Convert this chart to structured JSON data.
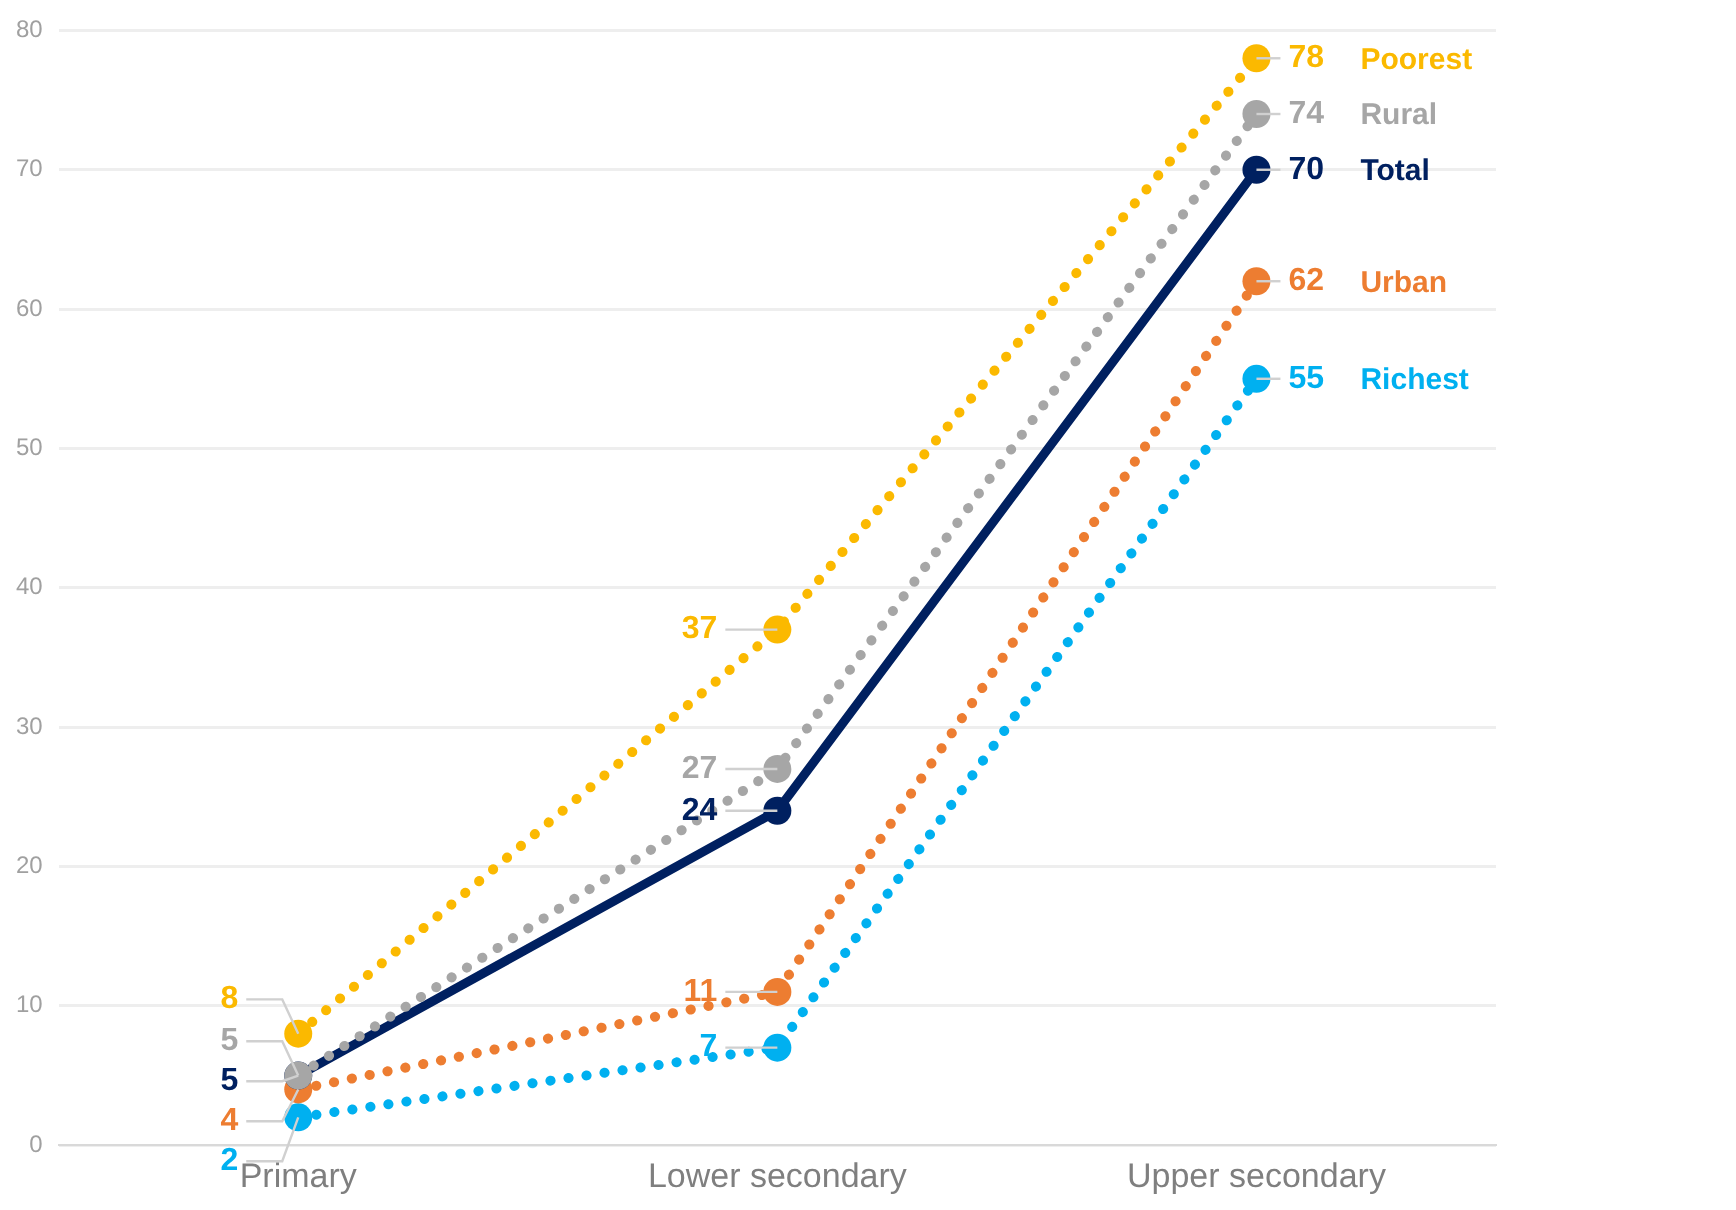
{
  "chart_data": {
    "type": "line",
    "categories": [
      "Primary",
      "Lower secondary",
      "Upper secondary"
    ],
    "ylim": [
      0,
      80
    ],
    "yticks": [
      0,
      10,
      20,
      30,
      40,
      50,
      60,
      70,
      80
    ],
    "grid": "y",
    "legend": false,
    "data_labels": true,
    "marker": "circle",
    "series": [
      {
        "name": "Poorest",
        "color": "#fbb900",
        "values": [
          8,
          37,
          78
        ],
        "line_style": "dotted"
      },
      {
        "name": "Rural",
        "color": "#a6a6a6",
        "values": [
          5,
          27,
          74
        ],
        "line_style": "dotted"
      },
      {
        "name": "Total",
        "color": "#002060",
        "values": [
          5,
          24,
          70
        ],
        "line_style": "solid"
      },
      {
        "name": "Urban",
        "color": "#ed7d31",
        "values": [
          4,
          11,
          62
        ],
        "line_style": "dotted"
      },
      {
        "name": "Richest",
        "color": "#00b0f0",
        "values": [
          2,
          7,
          55
        ],
        "line_style": "dotted"
      }
    ]
  }
}
